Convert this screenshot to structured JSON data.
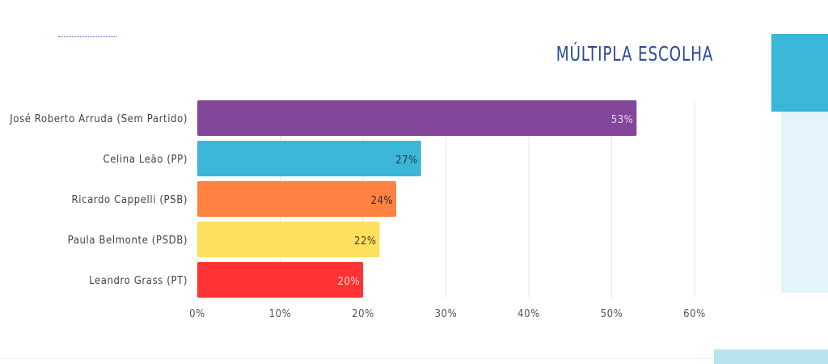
{
  "header": {
    "title": "MÚLTIPLA ESCOLHA"
  },
  "colors": {
    "accent": "#3BB6D8",
    "light": "#E3F4FC",
    "title": "#2C4A9A"
  },
  "chart_data": {
    "type": "bar",
    "orientation": "horizontal",
    "title": "MÚLTIPLA ESCOLHA",
    "categories": [
      "José Roberto Arruda (Sem Partido)",
      "Celina Leão (PP)",
      "Ricardo Cappelli (PSB)",
      "Paula Belmonte (PSDB)",
      "Leandro Grass (PT)"
    ],
    "values": [
      53,
      27,
      24,
      22,
      20
    ],
    "value_labels": [
      "53%",
      "27%",
      "24%",
      "22%",
      "20%"
    ],
    "bar_colors": [
      "#84469A",
      "#3BB6D8",
      "#FF8243",
      "#FFDF5E",
      "#FF3333"
    ],
    "label_colors": [
      "#E6D6EE",
      "#1f3a4a",
      "#3a2a20",
      "#4a4020",
      "#FFD6D6"
    ],
    "xlim": [
      0,
      60
    ],
    "xticks": [
      0,
      10,
      20,
      30,
      40,
      50,
      60
    ],
    "xtick_labels": [
      "0%",
      "10%",
      "20%",
      "30%",
      "40%",
      "50%",
      "60%"
    ],
    "grid": true,
    "xlabel": "",
    "ylabel": ""
  }
}
